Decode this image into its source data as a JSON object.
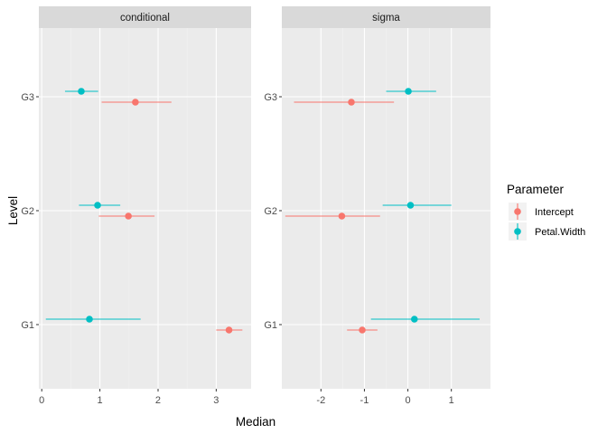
{
  "chart_data": {
    "type": "scatter",
    "subtype": "pointrange",
    "xlabel": "Median",
    "ylabel": "Level",
    "levels": [
      "G1",
      "G2",
      "G3"
    ],
    "legend": {
      "title": "Parameter",
      "position": "right",
      "entries": [
        {
          "name": "Intercept",
          "color": "#F8766D"
        },
        {
          "name": "Petal.Width",
          "color": "#00BFC4"
        }
      ]
    },
    "grid": true,
    "panels": [
      {
        "strip": "conditional",
        "xlim": [
          -0.05,
          3.6
        ],
        "xticks": [
          0,
          1,
          2,
          3
        ],
        "xtick_labels": [
          "0",
          "1",
          "2",
          "3"
        ],
        "series": [
          {
            "name": "Intercept",
            "color": "#F8766D",
            "points": [
              {
                "level": "G1",
                "median": 3.22,
                "low": 3.0,
                "high": 3.45
              },
              {
                "level": "G2",
                "median": 1.49,
                "low": 0.98,
                "high": 1.94
              },
              {
                "level": "G3",
                "median": 1.61,
                "low": 1.03,
                "high": 2.23
              }
            ]
          },
          {
            "name": "Petal.Width",
            "color": "#00BFC4",
            "points": [
              {
                "level": "G1",
                "median": 0.82,
                "low": 0.07,
                "high": 1.7
              },
              {
                "level": "G2",
                "median": 0.96,
                "low": 0.64,
                "high": 1.35
              },
              {
                "level": "G3",
                "median": 0.68,
                "low": 0.4,
                "high": 0.97
              }
            ]
          }
        ]
      },
      {
        "strip": "sigma",
        "xlim": [
          -2.9,
          1.9
        ],
        "xticks": [
          -2,
          -1,
          0,
          1
        ],
        "xtick_labels": [
          "-2",
          "-1",
          "0",
          "1"
        ],
        "series": [
          {
            "name": "Intercept",
            "color": "#F8766D",
            "points": [
              {
                "level": "G1",
                "median": -1.05,
                "low": -1.4,
                "high": -0.7
              },
              {
                "level": "G2",
                "median": -1.52,
                "low": -2.82,
                "high": -0.64
              },
              {
                "level": "G3",
                "median": -1.3,
                "low": -2.62,
                "high": -0.32
              }
            ]
          },
          {
            "name": "Petal.Width",
            "color": "#00BFC4",
            "points": [
              {
                "level": "G1",
                "median": 0.15,
                "low": -0.85,
                "high": 1.65
              },
              {
                "level": "G2",
                "median": 0.06,
                "low": -0.58,
                "high": 1.0
              },
              {
                "level": "G3",
                "median": 0.01,
                "low": -0.5,
                "high": 0.65
              }
            ]
          }
        ]
      }
    ]
  }
}
